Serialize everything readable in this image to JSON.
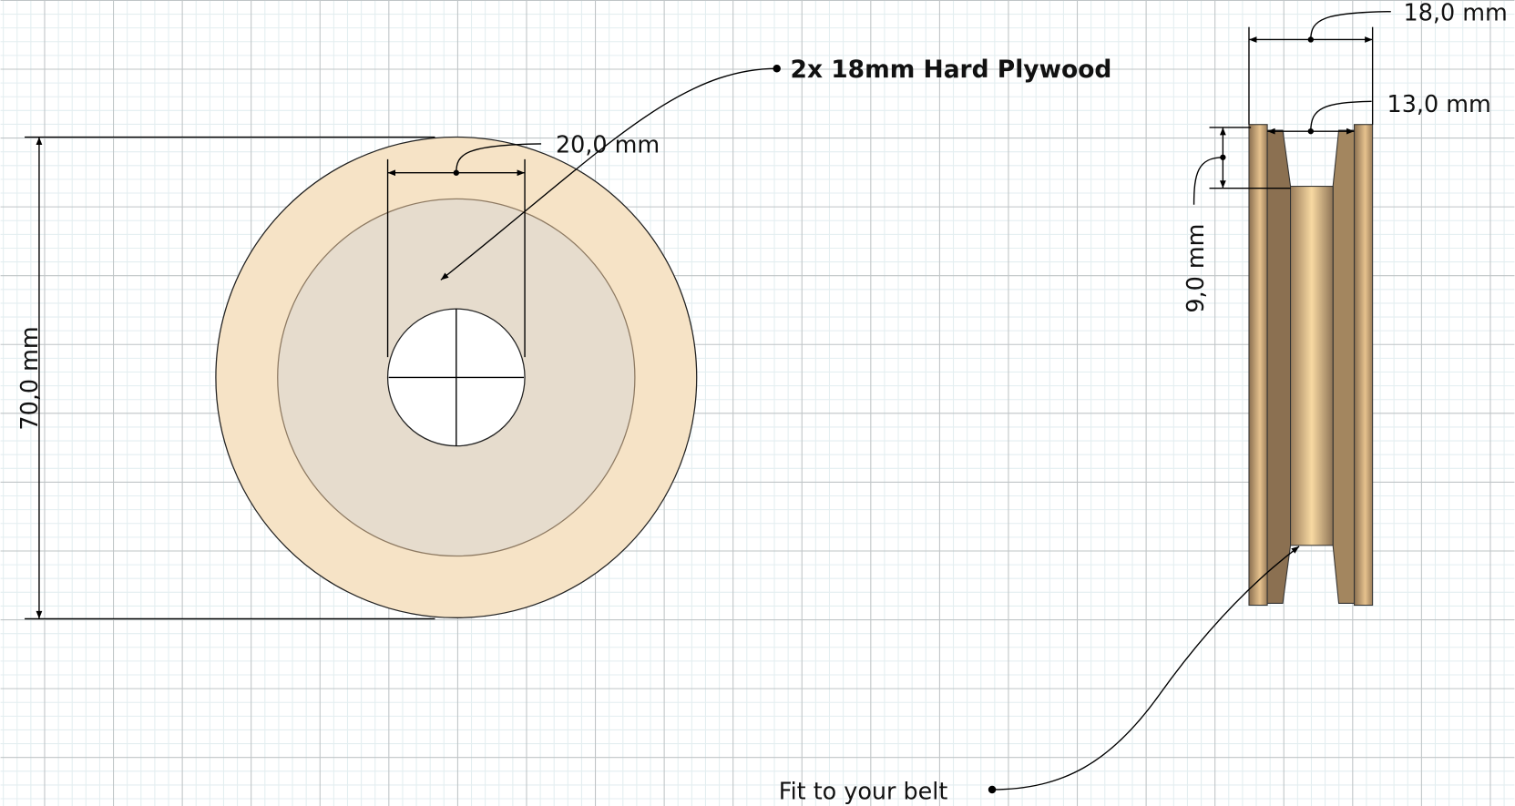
{
  "material_label": "2x 18mm Hard Plywood",
  "front_view": {
    "hole_width": "20,0 mm",
    "diameter": "70,0 mm"
  },
  "side_view": {
    "total_width": "18,0 mm",
    "groove_width": "13,0 mm",
    "groove_depth": "9,0 mm",
    "belt_note": "Fit to your belt"
  }
}
